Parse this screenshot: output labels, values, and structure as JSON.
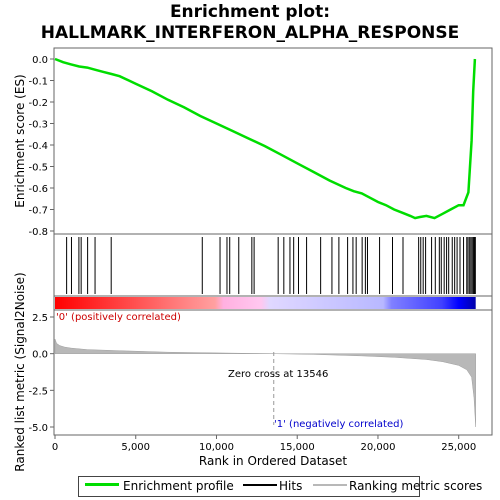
{
  "title_line1": "Enrichment plot:",
  "title_line2": "HALLMARK_INTERFERON_ALPHA_RESPONSE",
  "colors": {
    "es_line": "#00dd00",
    "hits": "#000000",
    "metric": "#b8b8b8",
    "pos_strong": "#ff0000",
    "neg_strong": "#0000ff",
    "zero_line": "#999999"
  },
  "chart_data": [
    {
      "type": "line",
      "name": "enrichment-profile",
      "ylabel": "Enrichment score (ES)",
      "ylim": [
        -0.8,
        0.0
      ],
      "yticks": [
        0.0,
        -0.1,
        -0.2,
        -0.3,
        -0.4,
        -0.5,
        -0.6,
        -0.7,
        -0.8
      ],
      "ytick_labels": [
        "0.0",
        "-0.1",
        "-0.2",
        "-0.3",
        "-0.4",
        "-0.5",
        "-0.6",
        "-0.7",
        "-0.8"
      ],
      "x": [
        0,
        500,
        1000,
        1500,
        2000,
        2500,
        3000,
        3500,
        4000,
        5000,
        6000,
        7000,
        8000,
        9000,
        10000,
        11000,
        12000,
        13000,
        14000,
        15000,
        16000,
        17000,
        18000,
        18500,
        19000,
        19500,
        20000,
        20500,
        21000,
        21500,
        22000,
        22300,
        22600,
        23000,
        23500,
        24000,
        24500,
        25000,
        25300,
        25600,
        25800,
        25900,
        26000
      ],
      "y": [
        0.0,
        -0.015,
        -0.025,
        -0.035,
        -0.04,
        -0.05,
        -0.06,
        -0.07,
        -0.08,
        -0.115,
        -0.15,
        -0.19,
        -0.225,
        -0.265,
        -0.3,
        -0.335,
        -0.37,
        -0.405,
        -0.445,
        -0.485,
        -0.525,
        -0.565,
        -0.6,
        -0.615,
        -0.625,
        -0.645,
        -0.665,
        -0.68,
        -0.7,
        -0.715,
        -0.73,
        -0.74,
        -0.735,
        -0.73,
        -0.74,
        -0.72,
        -0.7,
        -0.68,
        -0.68,
        -0.62,
        -0.38,
        -0.15,
        0.0
      ],
      "grid": false
    },
    {
      "type": "scatter",
      "name": "hits",
      "hit_ranks": [
        720,
        1020,
        1480,
        1620,
        2020,
        2480,
        3480,
        9120,
        10220,
        10650,
        10820,
        11380,
        12190,
        12330,
        13820,
        14170,
        14550,
        14780,
        15080,
        15580,
        16450,
        17150,
        17580,
        18120,
        18450,
        18650,
        19020,
        19220,
        19350,
        20100,
        20900,
        21550,
        22520,
        22650,
        22800,
        22950,
        23320,
        23550,
        23800,
        23920,
        24100,
        24250,
        24380,
        24600,
        24750,
        24900,
        25080,
        25300,
        25500,
        25580,
        25680,
        25760,
        25840,
        25920,
        25980,
        26030
      ]
    },
    {
      "type": "area",
      "name": "ranked-list-metric",
      "ylabel": "Ranked list metric (Signal2Noise)",
      "xlabel": "Rank in Ordered Dataset",
      "ylim": [
        -5.0,
        2.5
      ],
      "yticks": [
        2.5,
        0.0,
        -2.5,
        -5.0
      ],
      "ytick_labels": [
        "2.5",
        "0.0",
        "-2.5",
        "-5.0"
      ],
      "xticks": [
        0,
        5000,
        10000,
        15000,
        20000,
        25000
      ],
      "xtick_labels": [
        "0",
        "5,000",
        "10,000",
        "15,000",
        "20,000",
        "25,000"
      ],
      "xlim": [
        0,
        27000
      ],
      "x": [
        0,
        100,
        300,
        600,
        1000,
        2000,
        4000,
        7000,
        10000,
        13546,
        16000,
        19000,
        21000,
        23000,
        24000,
        25000,
        25500,
        25800,
        25950,
        26050
      ],
      "y": [
        1.0,
        0.7,
        0.55,
        0.45,
        0.38,
        0.28,
        0.2,
        0.1,
        0.05,
        0.0,
        -0.05,
        -0.15,
        -0.25,
        -0.4,
        -0.55,
        -0.8,
        -1.1,
        -1.6,
        -3.0,
        -5.0
      ],
      "zero_cross": 13546,
      "zero_cross_label": "Zero cross at 13546",
      "pos_label": "'0' (positively correlated)",
      "neg_label": "'1' (negatively correlated)"
    }
  ],
  "legend": {
    "es": "Enrichment profile",
    "hits": "Hits",
    "metric": "Ranking metric scores"
  }
}
